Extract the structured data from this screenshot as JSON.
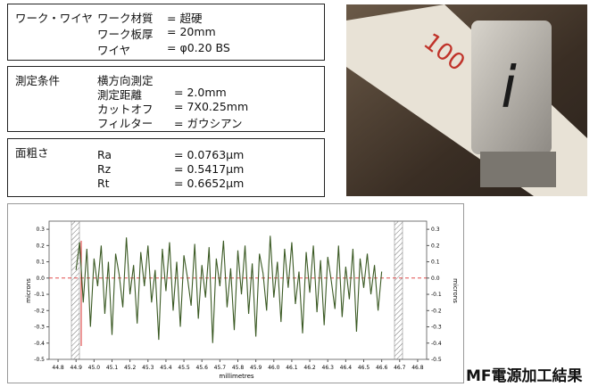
{
  "boxes": [
    {
      "label": "ワーク・ワイヤ",
      "rows": [
        [
          "ワーク材質",
          "= 超硬"
        ],
        [
          "ワーク板厚",
          "= 20mm"
        ],
        [
          "ワイヤ",
          "= φ0.20 BS"
        ]
      ]
    },
    {
      "label": "測定条件",
      "heading": "横方向測定",
      "rows": [
        [
          "測定距離",
          "= 2.0mm"
        ],
        [
          "カットオフ",
          "= 7X0.25mm"
        ],
        [
          "フィルター",
          "= ガウシアン"
        ]
      ]
    },
    {
      "label": "面粗さ",
      "rows": [
        [
          "Ra",
          "= 0.0763μm"
        ],
        [
          "Rz",
          "= 0.5417μm"
        ],
        [
          "Rt",
          "= 0.6652μm"
        ]
      ]
    }
  ],
  "photo": {
    "ruler_label": "100",
    "cube_label": "i"
  },
  "caption": "MF電源加工結果",
  "chart_data": {
    "type": "line",
    "xlabel": "millimetres",
    "ylabel": "microns",
    "y2label": "microns",
    "color": "#3b5a24",
    "x": [
      44.9,
      44.92,
      44.94,
      44.96,
      44.98,
      45.0,
      45.02,
      45.04,
      45.06,
      45.08,
      45.1,
      45.12,
      45.14,
      45.16,
      45.18,
      45.2,
      45.22,
      45.24,
      45.26,
      45.28,
      45.3,
      45.32,
      45.34,
      45.36,
      45.38,
      45.4,
      45.42,
      45.44,
      45.46,
      45.48,
      45.5,
      45.52,
      45.54,
      45.56,
      45.58,
      45.6,
      45.62,
      45.64,
      45.66,
      45.68,
      45.7,
      45.72,
      45.74,
      45.76,
      45.78,
      45.8,
      45.82,
      45.84,
      45.86,
      45.88,
      45.9,
      45.92,
      45.94,
      45.96,
      45.98,
      46.0,
      46.02,
      46.04,
      46.06,
      46.08,
      46.1,
      46.12,
      46.14,
      46.16,
      46.18,
      46.2,
      46.22,
      46.24,
      46.26,
      46.28,
      46.3,
      46.32,
      46.34,
      46.36,
      46.38,
      46.4,
      46.42,
      46.44,
      46.46,
      46.48,
      46.5,
      46.52,
      46.54,
      46.56,
      46.58,
      46.6
    ],
    "values": [
      0.05,
      0.22,
      -0.15,
      0.18,
      -0.3,
      0.12,
      -0.05,
      0.2,
      -0.22,
      0.1,
      -0.35,
      0.15,
      0.02,
      -0.18,
      0.25,
      -0.1,
      0.08,
      -0.28,
      0.16,
      -0.05,
      0.2,
      -0.15,
      0.05,
      -0.38,
      0.18,
      -0.08,
      0.22,
      -0.2,
      0.1,
      -0.3,
      0.14,
      0.0,
      -0.17,
      0.21,
      -0.25,
      0.08,
      -0.12,
      0.19,
      -0.4,
      0.12,
      -0.05,
      0.23,
      -0.18,
      0.06,
      -0.32,
      0.17,
      -0.1,
      0.2,
      -0.22,
      0.09,
      -0.36,
      0.15,
      0.03,
      -0.2,
      0.26,
      -0.12,
      0.1,
      -0.27,
      0.18,
      -0.06,
      0.22,
      -0.16,
      0.04,
      -0.34,
      0.16,
      -0.09,
      0.2,
      -0.21,
      0.11,
      -0.29,
      0.13,
      -0.02,
      -0.19,
      0.2,
      -0.24,
      0.07,
      -0.13,
      0.18,
      -0.33,
      0.12,
      -0.06,
      0.15,
      -0.1,
      0.08,
      -0.2,
      0.04
    ],
    "xlim": [
      44.75,
      46.85
    ],
    "xticks": [
      44.8,
      44.9,
      {
        "value": 45,
        "label": "45.0"
      },
      45.1,
      45.2,
      45.3,
      45.4,
      45.5,
      45.6,
      45.7,
      45.8,
      45.9,
      {
        "value": 46,
        "label": "46.0"
      },
      46.1,
      46.2,
      46.3,
      46.4,
      46.5,
      46.6,
      46.7,
      46.8
    ],
    "ylim": [
      -0.5,
      0.35
    ],
    "yticks": [
      0.3,
      0.2,
      0.1,
      {
        "value": 0,
        "label": "0.0"
      },
      -0.1,
      -0.2,
      -0.3,
      -0.4,
      -0.5
    ],
    "y2lim": [
      -0.5,
      0.35
    ],
    "y2ticks": [
      0.3,
      0.2,
      0.1,
      {
        "value": 0,
        "label": "0.0"
      },
      -0.1,
      -0.2,
      -0.3,
      -0.4,
      -0.5
    ]
  }
}
